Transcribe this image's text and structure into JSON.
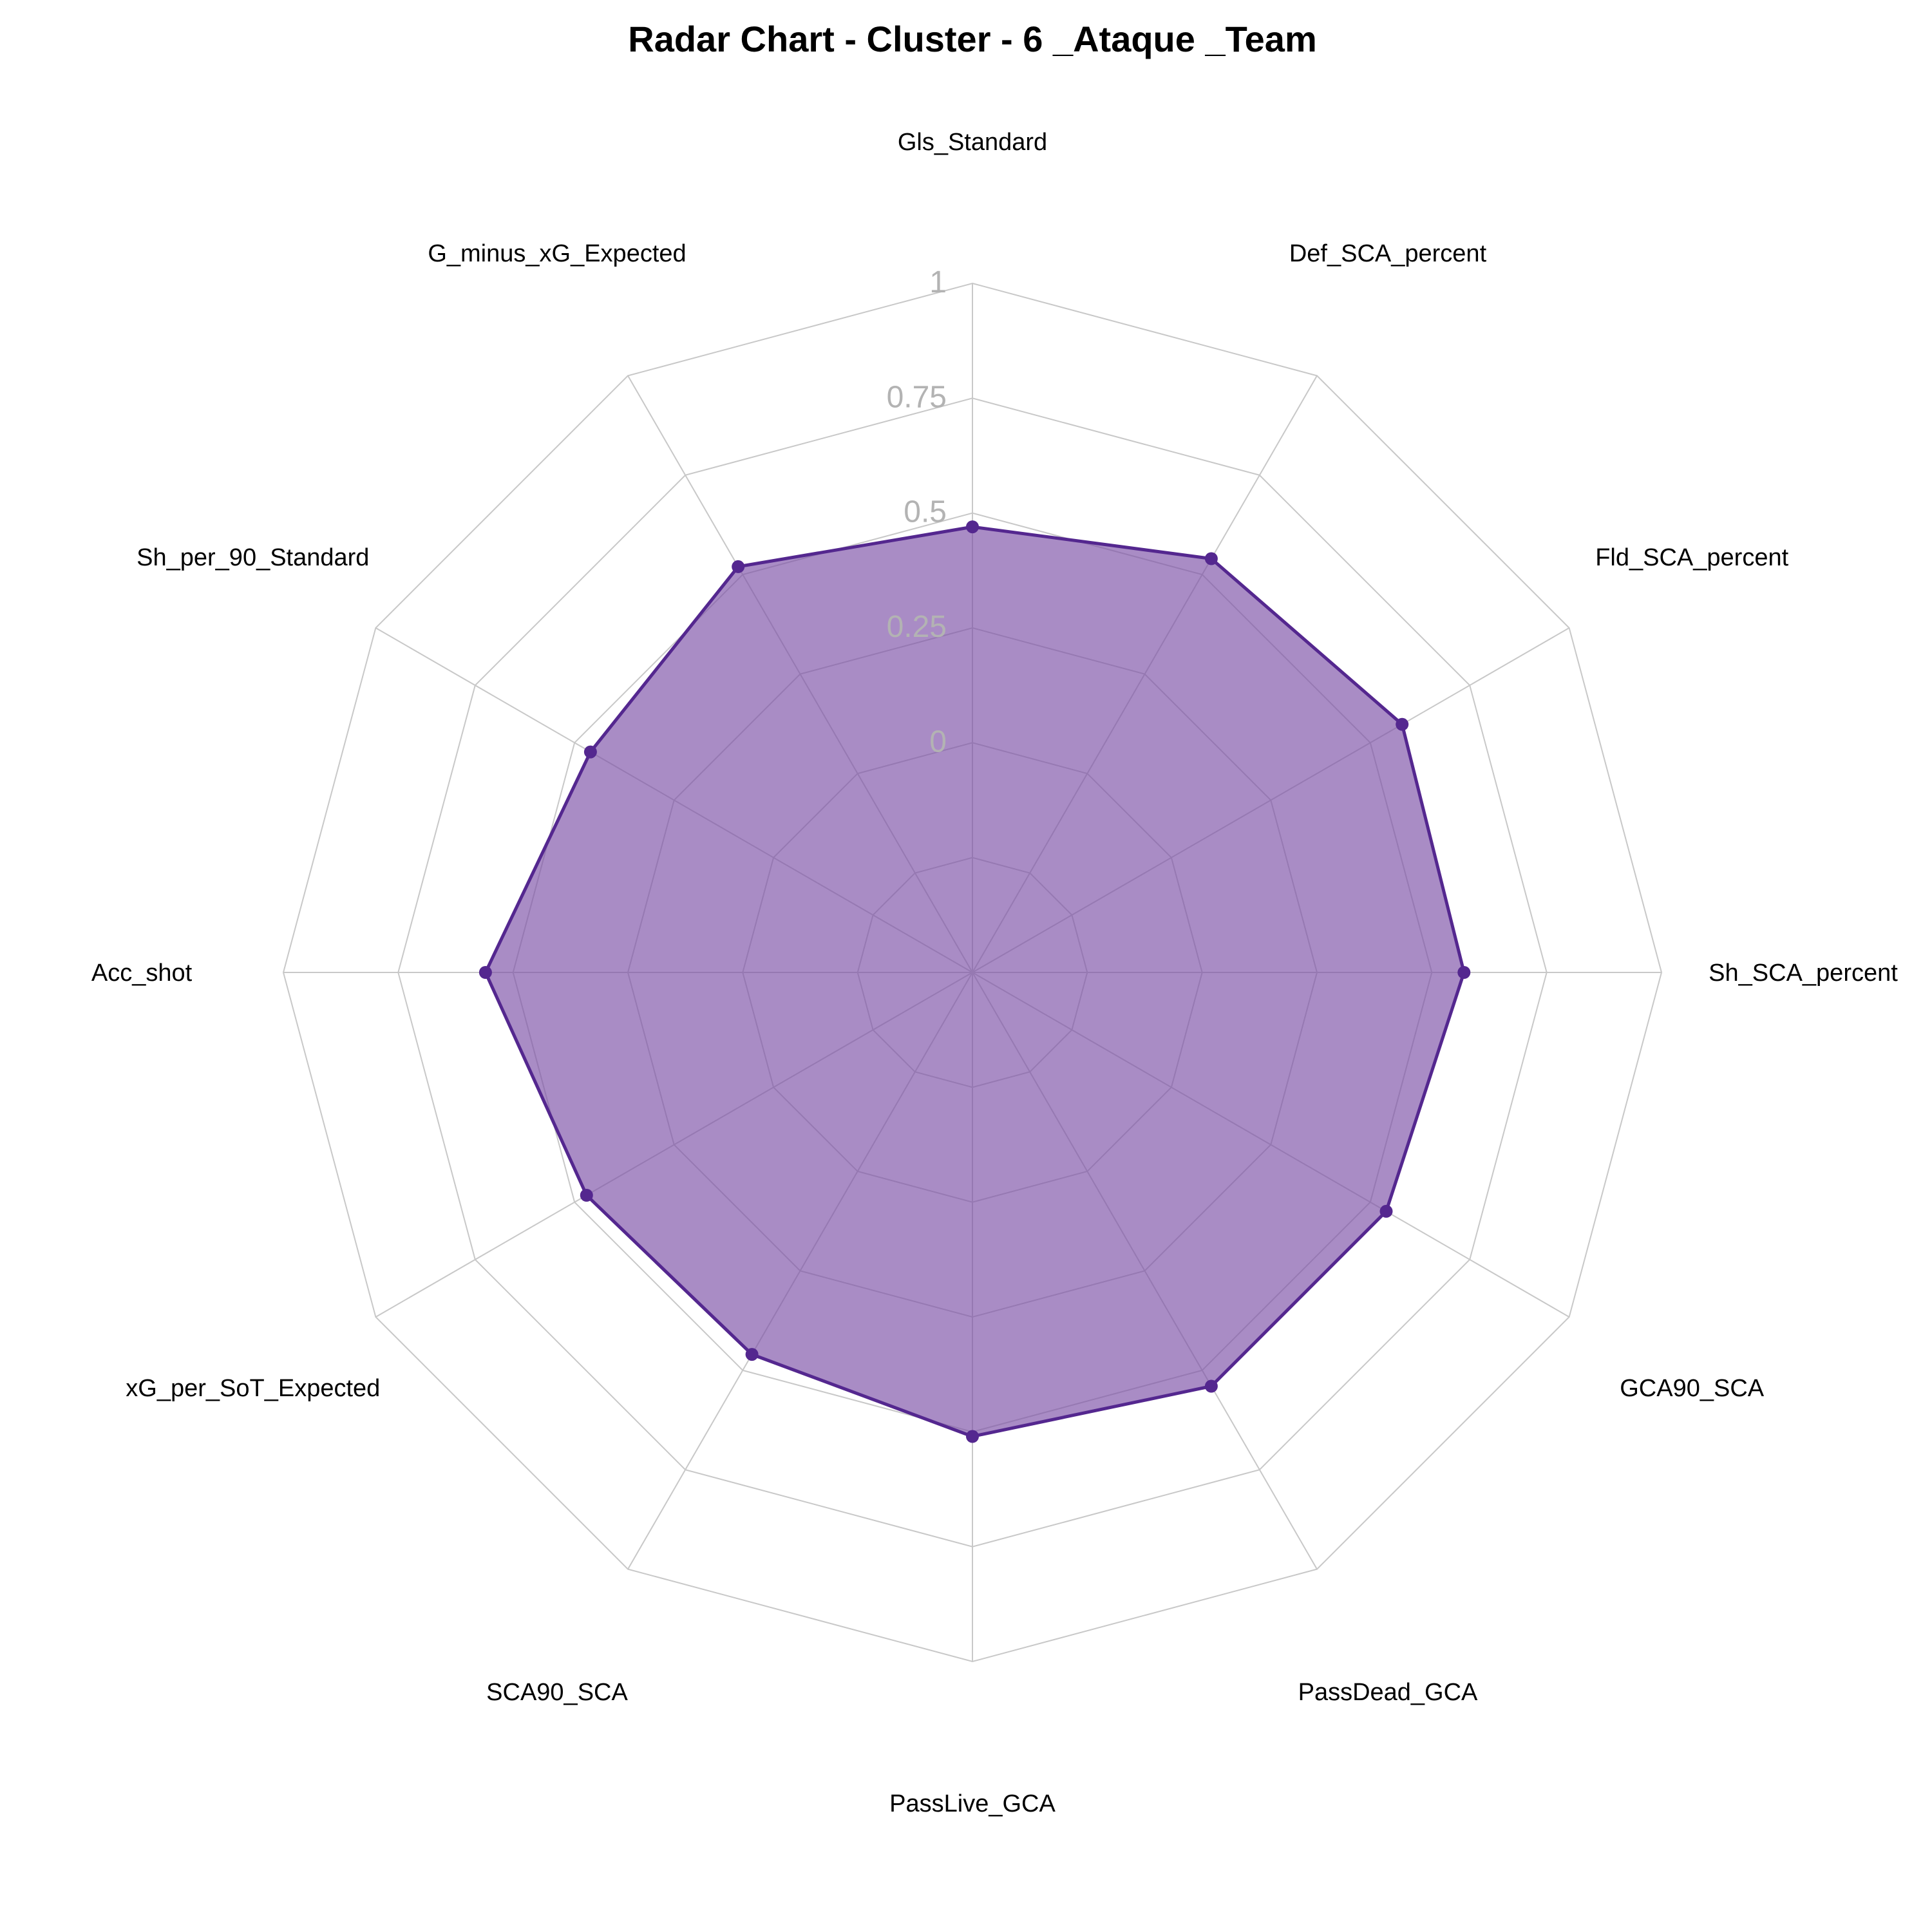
{
  "chart_data": {
    "type": "radar",
    "title": "Radar Chart - Cluster - 6 _Ataque _Team",
    "axes": [
      "Gls_Standard",
      "Def_SCA_percent",
      "Fld_SCA_percent",
      "Sh_SCA_percent",
      "GCA90_SCA",
      "PassDead_GCA",
      "PassLive_GCA",
      "SCA90_SCA",
      "xG_per_SoT_Expected",
      "Acc_shot",
      "Sh_per_90_Standard",
      "G_minus_xG_Expected"
    ],
    "tick_labels": [
      "0",
      "0.25",
      "0.5",
      "0.75",
      "1"
    ],
    "range": [
      -0.5,
      1
    ],
    "grid": true,
    "series": [
      {
        "values": [
          0.47,
          0.54,
          0.58,
          0.57,
          0.54,
          0.54,
          0.51,
          0.46,
          0.47,
          0.56,
          0.46,
          0.52
        ]
      }
    ],
    "colors": {
      "line": "#54278f",
      "fill": "#7b4fa6",
      "fill_opacity": 0.65,
      "grid": "#c8c8c8",
      "tick": "#b3b3b3"
    }
  }
}
